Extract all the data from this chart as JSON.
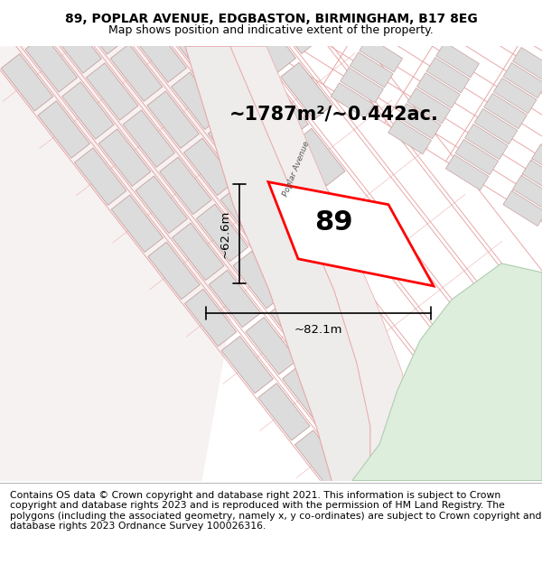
{
  "title": "89, POPLAR AVENUE, EDGBASTON, BIRMINGHAM, B17 8EG",
  "subtitle": "Map shows position and indicative extent of the property.",
  "footer": "Contains OS data © Crown copyright and database right 2021. This information is subject to Crown copyright and database rights 2023 and is reproduced with the permission of HM Land Registry. The polygons (including the associated geometry, namely x, y co-ordinates) are subject to Crown copyright and database rights 2023 Ordnance Survey 100026316.",
  "area_text": "~1787m²/~0.442ac.",
  "label_89": "89",
  "dim_height": "~62.6m",
  "dim_width": "~82.1m",
  "street_label": "Poplar Avenue",
  "map_bg": "#f7f2f2",
  "line_color": "#e8a8a8",
  "highlight_color": "#ff0000",
  "building_fill": "#dcdcdc",
  "building_edge": "#c8a0a0",
  "road_fill": "#ede8e8",
  "green_fill": "#ddeedd",
  "green_edge": "#b0ccb0",
  "title_fontsize": 10,
  "subtitle_fontsize": 9,
  "footer_fontsize": 7.8,
  "area_fontsize": 15,
  "label_fontsize": 22,
  "dim_fontsize": 9.5
}
